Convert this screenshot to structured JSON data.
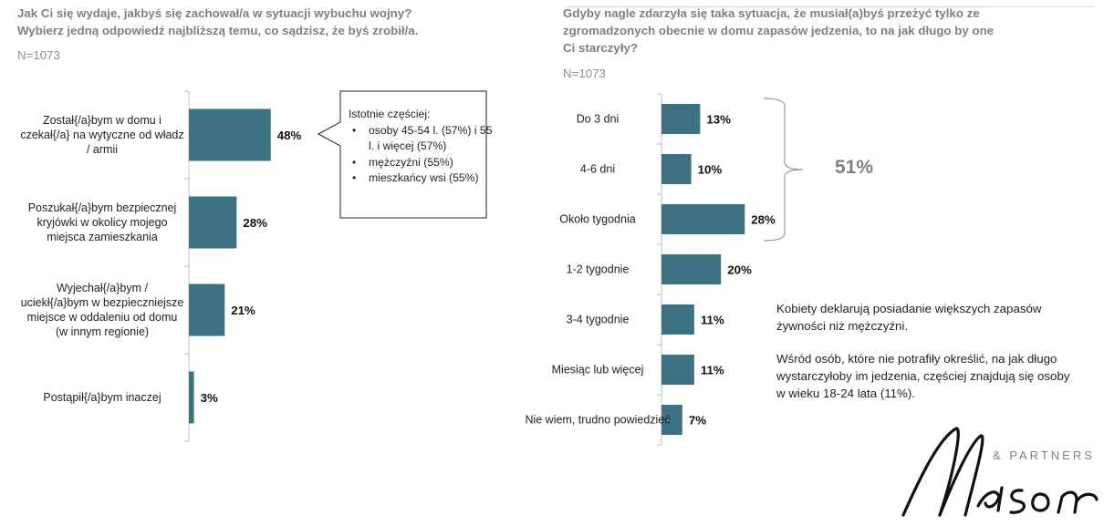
{
  "left_panel": {
    "question_line1": "Jak Ci się wydaje, jakbyś się zachował/a w sytuacji wybuchu wojny?",
    "question_line2": "Wybierz jedną odpowiedź najbliższą temu, co sądzisz, że byś zrobił/a.",
    "n_label": "N=1073",
    "callout": {
      "title": "Istotnie częściej:",
      "items": [
        "osoby 45-54 l. (57%) i 55 l. i więcej (57%)",
        "mężczyźni (55%)",
        "mieszkańcy wsi (55%)"
      ]
    }
  },
  "right_panel": {
    "question": "Gdyby nagle zdarzyła się taka sytuacja, że musiał(a)byś przeżyć tylko ze zgromadzonych obecnie w domu zapasów jedzenia, to na jak długo by one Ci starczyły?",
    "n_label": "N=1073",
    "bracket_total": "51%",
    "note1": "Kobiety deklarują posiadanie większych zapasów żywności niż mężczyźni.",
    "note2": "Wśród osób, które nie potrafiły określić, na jak długo wystarczyłoby im jedzenia, częściej znajdują się osoby w wieku 18-24 lata (11%)."
  },
  "logo": {
    "brand": "Maison",
    "suffix": "& PARTNERS"
  },
  "colors": {
    "bar": "#3c7181",
    "question": "#7f7f7f",
    "axis": "#bfbfbf"
  },
  "chart_data": [
    {
      "type": "bar",
      "orientation": "horizontal",
      "categories": [
        [
          "Został{/a}bym w domu i",
          "czekał{/a} na wytyczne od władz",
          "/ armii"
        ],
        [
          "Poszukał{/a}bym bezpiecznej",
          "kryjówki w okolicy mojego",
          "miejsca zamieszkania"
        ],
        [
          "Wyjechał{/a}bym /",
          "uciekł{/a}bym w bezpieczniejsze",
          "miejsce w oddaleniu od domu",
          "(w innym regionie)"
        ],
        [
          "Postąpił{/a}bym inaczej"
        ]
      ],
      "values": [
        48,
        28,
        21,
        3
      ],
      "value_labels": [
        "48%",
        "28%",
        "21%",
        "3%"
      ],
      "xlim": [
        0,
        100
      ]
    },
    {
      "type": "bar",
      "orientation": "horizontal",
      "categories": [
        [
          "Do 3 dni"
        ],
        [
          "4-6 dni"
        ],
        [
          "Około tygodnia"
        ],
        [
          "1-2 tygodnie"
        ],
        [
          "3-4 tygodnie"
        ],
        [
          "Miesiąc lub więcej"
        ],
        [
          "Nie wiem, trudno powiedzieć"
        ]
      ],
      "values": [
        13,
        10,
        28,
        20,
        11,
        11,
        7
      ],
      "value_labels": [
        "13%",
        "10%",
        "28%",
        "20%",
        "11%",
        "11%",
        "7%"
      ],
      "xlim": [
        0,
        100
      ]
    }
  ]
}
